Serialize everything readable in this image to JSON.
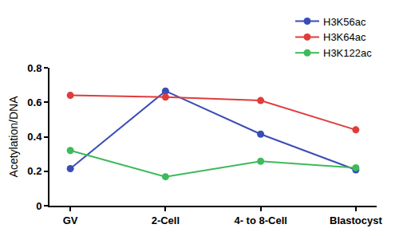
{
  "chart_data": {
    "type": "line",
    "y_label": "Acetylation/DNA",
    "categories": [
      "GV",
      "2-Cell",
      "4- to 8-Cell",
      "Blastocyst"
    ],
    "series": [
      {
        "name": "H3K56ac",
        "color": "#3a4db5",
        "values": [
          0.215,
          0.665,
          0.415,
          0.208
        ]
      },
      {
        "name": "H3K64ac",
        "color": "#e03c3c",
        "values": [
          0.64,
          0.63,
          0.61,
          0.44
        ]
      },
      {
        "name": "H3K122ac",
        "color": "#3dba5a",
        "values": [
          0.32,
          0.168,
          0.258,
          0.22
        ]
      }
    ],
    "ylim": [
      0,
      0.8
    ],
    "yticks": [
      0,
      0.2,
      0.4,
      0.6,
      0.8
    ],
    "grid": false,
    "legend": "top right",
    "marker": "circle",
    "line_style": "solid"
  }
}
